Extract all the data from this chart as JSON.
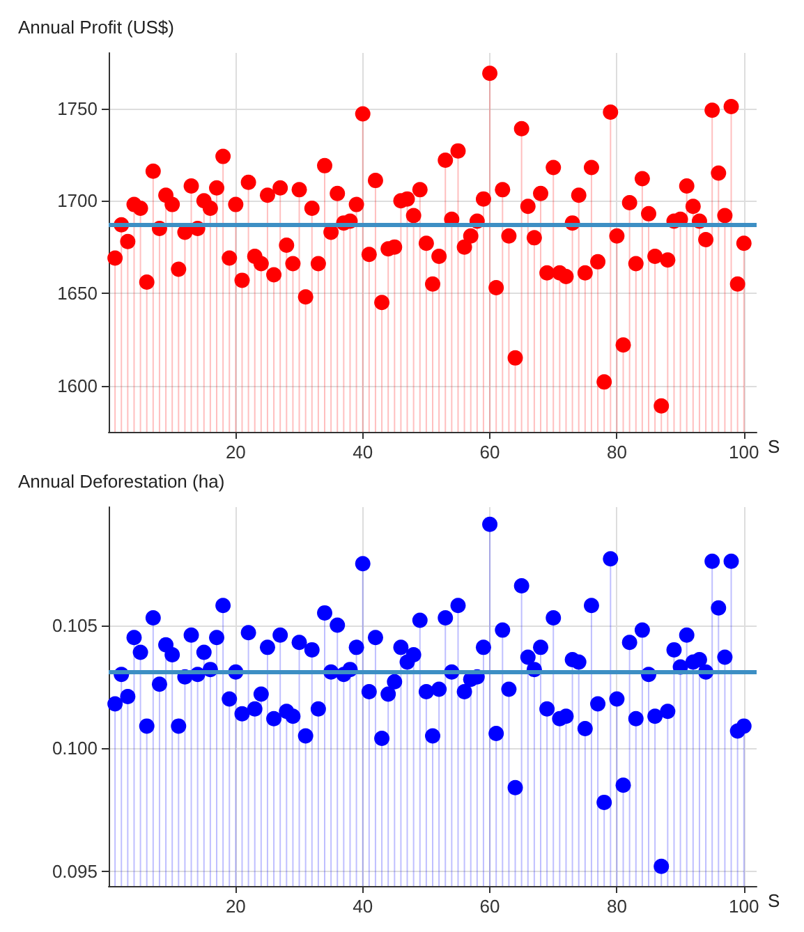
{
  "chart_data": [
    {
      "type": "lollipop",
      "ylabel": "Annual Profit (US$)",
      "xlabel": "S",
      "x": [
        1,
        2,
        3,
        4,
        5,
        6,
        7,
        8,
        9,
        10,
        11,
        12,
        13,
        14,
        15,
        16,
        17,
        18,
        19,
        20,
        21,
        22,
        23,
        24,
        25,
        26,
        27,
        28,
        29,
        30,
        31,
        32,
        33,
        34,
        35,
        36,
        37,
        38,
        39,
        40,
        41,
        42,
        43,
        44,
        45,
        46,
        47,
        48,
        49,
        50,
        51,
        52,
        53,
        54,
        55,
        56,
        57,
        58,
        59,
        60,
        61,
        62,
        63,
        64,
        65,
        66,
        67,
        68,
        69,
        70,
        71,
        72,
        73,
        74,
        75,
        76,
        77,
        78,
        79,
        80,
        81,
        82,
        83,
        84,
        85,
        86,
        87,
        88,
        89,
        90,
        91,
        92,
        93,
        94,
        95,
        96,
        97,
        98,
        99,
        100
      ],
      "series": [
        {
          "color": "#ff0000",
          "values": [
            1669,
            1687,
            1678,
            1698,
            1696,
            1656,
            1716,
            1685,
            1703,
            1698,
            1663,
            1683,
            1708,
            1685,
            1700,
            1696,
            1707,
            1724,
            1669,
            1698,
            1657,
            1710,
            1670,
            1666,
            1703,
            1660,
            1707,
            1676,
            1666,
            1706,
            1648,
            1696,
            1666,
            1719,
            1683,
            1704,
            1688,
            1689,
            1698,
            1747,
            1671,
            1711,
            1645,
            1674,
            1675,
            1700,
            1701,
            1692,
            1706,
            1677,
            1655,
            1670,
            1722,
            1690,
            1727,
            1675,
            1681,
            1689,
            1701,
            1769,
            1653,
            1706,
            1681,
            1615,
            1739,
            1697,
            1680,
            1704,
            1661,
            1718,
            1661,
            1659,
            1688,
            1703,
            1661,
            1718,
            1667,
            1602,
            1748,
            1681,
            1622,
            1699,
            1666,
            1712,
            1693,
            1670,
            1589,
            1668,
            1689,
            1690,
            1708,
            1697,
            1689,
            1679,
            1749,
            1715,
            1692,
            1751,
            1655,
            1677
          ]
        }
      ],
      "xlim": [
        0,
        102
      ],
      "xticks": [
        20,
        40,
        60,
        80,
        100
      ],
      "ylim": [
        1575,
        1780
      ],
      "yticks": [
        1600,
        1650,
        1700,
        1750
      ],
      "grid": true,
      "marker": "circle",
      "ref_lines": [
        {
          "axis": "y",
          "value": 1687,
          "color": "#3d8fc4"
        }
      ]
    },
    {
      "type": "lollipop",
      "ylabel": "Annual Deforestation (ha)",
      "xlabel": "S",
      "x": [
        1,
        2,
        3,
        4,
        5,
        6,
        7,
        8,
        9,
        10,
        11,
        12,
        13,
        14,
        15,
        16,
        17,
        18,
        19,
        20,
        21,
        22,
        23,
        24,
        25,
        26,
        27,
        28,
        29,
        30,
        31,
        32,
        33,
        34,
        35,
        36,
        37,
        38,
        39,
        40,
        41,
        42,
        43,
        44,
        45,
        46,
        47,
        48,
        49,
        50,
        51,
        52,
        53,
        54,
        55,
        56,
        57,
        58,
        59,
        60,
        61,
        62,
        63,
        64,
        65,
        66,
        67,
        68,
        69,
        70,
        71,
        72,
        73,
        74,
        75,
        76,
        77,
        78,
        79,
        80,
        81,
        82,
        83,
        84,
        85,
        86,
        87,
        88,
        89,
        90,
        91,
        92,
        93,
        94,
        95,
        96,
        97,
        98,
        99,
        100
      ],
      "series": [
        {
          "color": "#0000ff",
          "values": [
            0.1018,
            0.103,
            0.1021,
            0.1045,
            0.1039,
            0.1009,
            0.1053,
            0.1026,
            0.1042,
            0.1038,
            0.1009,
            0.1029,
            0.1046,
            0.103,
            0.1039,
            0.1032,
            0.1045,
            0.1058,
            0.102,
            0.1031,
            0.1014,
            0.1047,
            0.1016,
            0.1022,
            0.1041,
            0.1012,
            0.1046,
            0.1015,
            0.1013,
            0.1043,
            0.1005,
            0.104,
            0.1016,
            0.1055,
            0.1031,
            0.105,
            0.103,
            0.1032,
            0.1041,
            0.1075,
            0.1023,
            0.1045,
            0.1004,
            0.1022,
            0.1027,
            0.1041,
            0.1035,
            0.1038,
            0.1052,
            0.1023,
            0.1005,
            0.1024,
            0.1053,
            0.1031,
            0.1058,
            0.1023,
            0.1028,
            0.1029,
            0.1041,
            0.1091,
            0.1006,
            0.1048,
            0.1024,
            0.0984,
            0.1066,
            0.1037,
            0.1032,
            0.1041,
            0.1016,
            0.1053,
            0.1012,
            0.1013,
            0.1036,
            0.1035,
            0.1008,
            0.1058,
            0.1018,
            0.0978,
            0.1077,
            0.102,
            0.0985,
            0.1043,
            0.1012,
            0.1048,
            0.103,
            0.1013,
            0.0952,
            0.1015,
            0.104,
            0.1033,
            0.1046,
            0.1035,
            0.1036,
            0.1031,
            0.1076,
            0.1057,
            0.1037,
            0.1076,
            0.1007,
            0.1009
          ]
        }
      ],
      "xlim": [
        0,
        102
      ],
      "xticks": [
        20,
        40,
        60,
        80,
        100
      ],
      "ylim": [
        0.0944,
        0.1098
      ],
      "yticks": [
        {
          "value": 0.095,
          "label": "0.095"
        },
        {
          "value": 0.1,
          "label": "0.100"
        },
        {
          "value": 0.105,
          "label": "0.105"
        }
      ],
      "grid": true,
      "marker": "circle",
      "ref_lines": [
        {
          "axis": "y",
          "value": 0.10312,
          "color": "#3d8fc4"
        }
      ]
    }
  ]
}
